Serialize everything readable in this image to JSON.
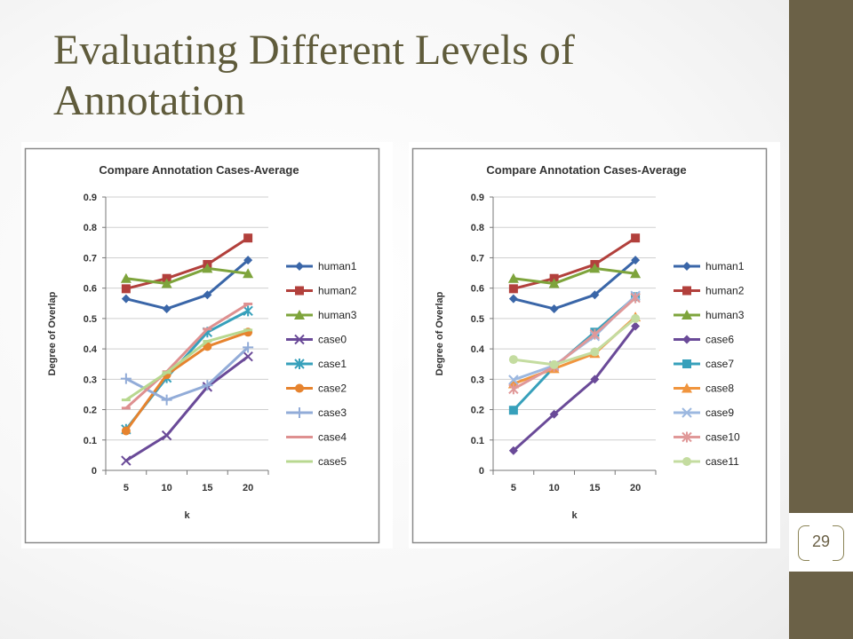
{
  "slide": {
    "title": "Evaluating Different Levels of Annotation",
    "page_number": "29"
  },
  "colors": {
    "sidebar": "#6b6147",
    "title": "#5f5b3b"
  },
  "chart_data": [
    {
      "type": "line",
      "title": "Compare Annotation Cases-Average",
      "xlabel": "k",
      "ylabel": "Degree of Overlap",
      "categories": [
        "5",
        "10",
        "15",
        "20"
      ],
      "ylim": [
        0,
        0.9
      ],
      "yticks": [
        "0",
        "0.1",
        "0.2",
        "0.3",
        "0.4",
        "0.5",
        "0.6",
        "0.7",
        "0.8",
        "0.9"
      ],
      "grid": true,
      "legend": "right",
      "series": [
        {
          "name": "human1",
          "values": [
            0.565,
            0.532,
            0.578,
            0.692
          ],
          "color": "#3a66a8",
          "marker": "diamond"
        },
        {
          "name": "human2",
          "values": [
            0.598,
            0.632,
            0.678,
            0.765
          ],
          "color": "#b2403c",
          "marker": "square"
        },
        {
          "name": "human3",
          "values": [
            0.632,
            0.615,
            0.665,
            0.648
          ],
          "color": "#7ea43c",
          "marker": "triangle"
        },
        {
          "name": "case0",
          "values": [
            0.032,
            0.115,
            0.275,
            0.375
          ],
          "color": "#6a4a98",
          "marker": "x"
        },
        {
          "name": "case1",
          "values": [
            0.135,
            0.305,
            0.455,
            0.525
          ],
          "color": "#37a0bb",
          "marker": "star"
        },
        {
          "name": "case2",
          "values": [
            0.13,
            0.315,
            0.408,
            0.455
          ],
          "color": "#e6832e",
          "marker": "circle"
        },
        {
          "name": "case3",
          "values": [
            0.302,
            0.232,
            0.28,
            0.405
          ],
          "color": "#92acd8",
          "marker": "plus"
        },
        {
          "name": "case4",
          "values": [
            0.205,
            0.325,
            0.465,
            0.548
          ],
          "color": "#de9090",
          "marker": "dash"
        },
        {
          "name": "case5",
          "values": [
            0.232,
            0.322,
            0.425,
            0.462
          ],
          "color": "#b8d890",
          "marker": "dash"
        }
      ]
    },
    {
      "type": "line",
      "title": "Compare Annotation Cases-Average",
      "xlabel": "k",
      "ylabel": "Degree of Overlap",
      "categories": [
        "5",
        "10",
        "15",
        "20"
      ],
      "ylim": [
        0,
        0.9
      ],
      "yticks": [
        "0",
        "0.1",
        "0.2",
        "0.3",
        "0.4",
        "0.5",
        "0.6",
        "0.7",
        "0.8",
        "0.9"
      ],
      "grid": true,
      "legend": "right",
      "series": [
        {
          "name": "human1",
          "values": [
            0.565,
            0.532,
            0.578,
            0.692
          ],
          "color": "#3a66a8",
          "marker": "diamond"
        },
        {
          "name": "human2",
          "values": [
            0.598,
            0.632,
            0.678,
            0.765
          ],
          "color": "#b2403c",
          "marker": "square"
        },
        {
          "name": "human3",
          "values": [
            0.632,
            0.615,
            0.665,
            0.648
          ],
          "color": "#7ea43c",
          "marker": "triangle"
        },
        {
          "name": "case6",
          "values": [
            0.065,
            0.185,
            0.3,
            0.475
          ],
          "color": "#6a4a98",
          "marker": "diamond"
        },
        {
          "name": "case7",
          "values": [
            0.198,
            0.34,
            0.455,
            0.572
          ],
          "color": "#37a0bb",
          "marker": "square"
        },
        {
          "name": "case8",
          "values": [
            0.285,
            0.335,
            0.385,
            0.505
          ],
          "color": "#f0953e",
          "marker": "triangle"
        },
        {
          "name": "case9",
          "values": [
            0.298,
            0.345,
            0.442,
            0.575
          ],
          "color": "#9cb8e0",
          "marker": "x"
        },
        {
          "name": "case10",
          "values": [
            0.268,
            0.342,
            0.448,
            0.568
          ],
          "color": "#e09898",
          "marker": "star"
        },
        {
          "name": "case11",
          "values": [
            0.365,
            0.348,
            0.39,
            0.5
          ],
          "color": "#c4dca0",
          "marker": "circle"
        }
      ]
    }
  ]
}
